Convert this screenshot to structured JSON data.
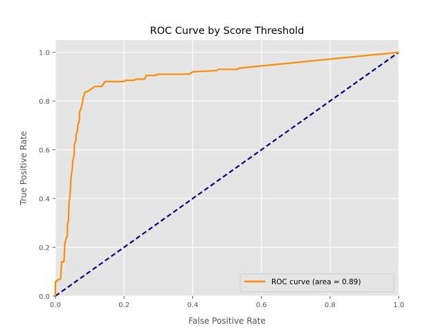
{
  "chart_data": {
    "type": "line",
    "title": "ROC Curve by Score Threshold",
    "xlabel": "False Positive Rate",
    "ylabel": "True Positive Rate",
    "xlim": [
      0.0,
      1.0
    ],
    "ylim": [
      0.0,
      1.05
    ],
    "xticks": [
      "0.0",
      "0.2",
      "0.4",
      "0.6",
      "0.8",
      "1.0"
    ],
    "yticks": [
      "0.0",
      "0.2",
      "0.4",
      "0.6",
      "0.8",
      "1.0"
    ],
    "grid": true,
    "background": "#e5e5e5",
    "legend_position": "bottom-right",
    "series": [
      {
        "name": "ROC curve (area = 0.89)",
        "color": "#ff8c00",
        "style": "solid",
        "x": [
          0.0,
          0.0,
          0.005,
          0.005,
          0.015,
          0.018,
          0.018,
          0.025,
          0.028,
          0.03,
          0.03,
          0.035,
          0.035,
          0.038,
          0.04,
          0.042,
          0.045,
          0.045,
          0.05,
          0.05,
          0.055,
          0.055,
          0.06,
          0.06,
          0.065,
          0.065,
          0.07,
          0.07,
          0.072,
          0.075,
          0.08,
          0.08,
          0.085,
          0.085,
          0.09,
          0.095,
          0.1,
          0.105,
          0.11,
          0.115,
          0.12,
          0.135,
          0.14,
          0.145,
          0.2,
          0.205,
          0.23,
          0.235,
          0.26,
          0.265,
          0.29,
          0.3,
          0.39,
          0.4,
          0.47,
          0.475,
          0.53,
          0.535,
          1.0
        ],
        "y": [
          0.0,
          0.06,
          0.06,
          0.065,
          0.07,
          0.13,
          0.14,
          0.14,
          0.22,
          0.225,
          0.23,
          0.25,
          0.29,
          0.31,
          0.39,
          0.4,
          0.47,
          0.48,
          0.53,
          0.55,
          0.58,
          0.62,
          0.64,
          0.66,
          0.68,
          0.7,
          0.72,
          0.75,
          0.76,
          0.77,
          0.8,
          0.81,
          0.83,
          0.835,
          0.838,
          0.84,
          0.845,
          0.85,
          0.855,
          0.86,
          0.86,
          0.86,
          0.87,
          0.88,
          0.88,
          0.885,
          0.885,
          0.89,
          0.89,
          0.905,
          0.905,
          0.91,
          0.91,
          0.92,
          0.925,
          0.93,
          0.93,
          0.935,
          1.0
        ]
      },
      {
        "name": "",
        "color": "#000080",
        "style": "dashed",
        "x": [
          0.0,
          1.0
        ],
        "y": [
          0.0,
          1.0
        ]
      }
    ]
  }
}
